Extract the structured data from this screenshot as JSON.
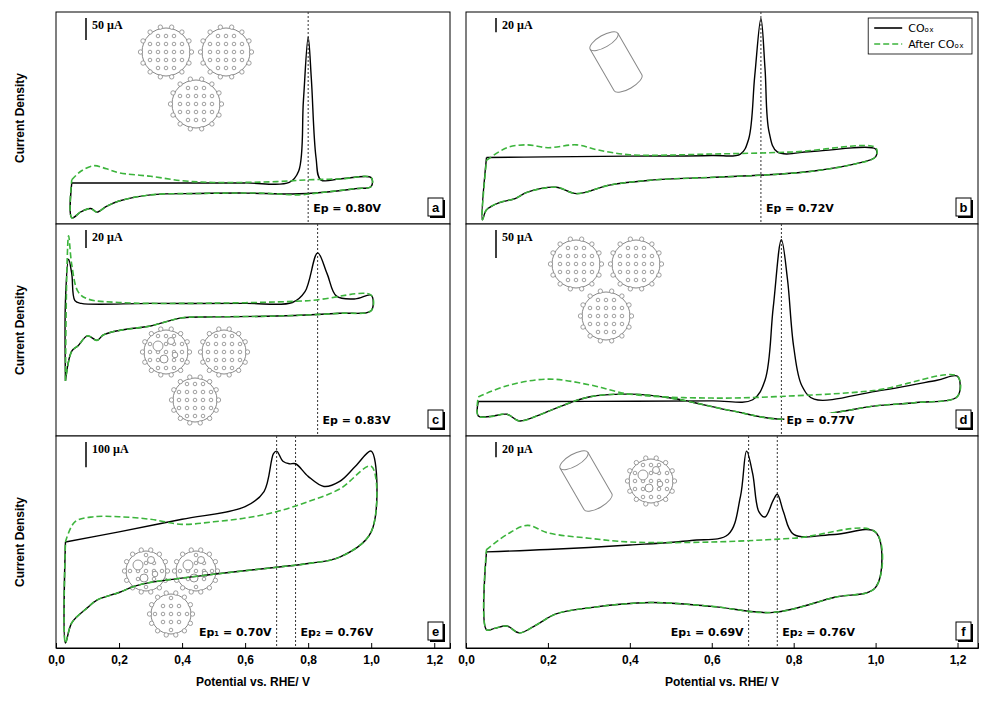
{
  "chart_data": [
    {
      "type": "line",
      "panel": "a",
      "y_label": "Current Density",
      "xlim": [
        0,
        1.25
      ],
      "ylim": [
        -80,
        400
      ],
      "tick_labels": false,
      "scale_bar": {
        "label": "50 µA",
        "value": 50
      },
      "annotations": [
        {
          "text": "Ep = 0.80V",
          "x": 0.8
        }
      ],
      "series": [
        {
          "color": "#000000",
          "line_style": "solid",
          "x": [
            0.05,
            0.2,
            0.4,
            0.6,
            0.74,
            0.77,
            0.785,
            0.8,
            0.81,
            0.825,
            0.84,
            0.9,
            1.0,
            1.0,
            0.95,
            0.85,
            0.75,
            0.6,
            0.45,
            0.3,
            0.2,
            0.16,
            0.13,
            0.11,
            0.08,
            0.05,
            0.05
          ],
          "values": [
            13,
            13,
            13,
            13,
            14,
            40,
            200,
            343,
            250,
            70,
            20,
            22,
            25,
            5,
            0,
            -8,
            -12,
            -10,
            -11,
            -14,
            -28,
            -40,
            -53,
            -45,
            -52,
            -66,
            13
          ]
        },
        {
          "color": "#3cb43c",
          "line_style": "dashed",
          "x": [
            0.05,
            0.08,
            0.12,
            0.16,
            0.2,
            0.3,
            0.4,
            0.5,
            0.7,
            0.8,
            0.9,
            1.0,
            1.0,
            0.95,
            0.85,
            0.77,
            0.65,
            0.45,
            0.3,
            0.2,
            0.16,
            0.13,
            0.11,
            0.08,
            0.05,
            0.05
          ],
          "values": [
            20,
            40,
            52,
            45,
            36,
            28,
            18,
            14,
            16,
            20,
            22,
            25,
            5,
            0,
            -8,
            -14,
            -10,
            -11,
            -14,
            -28,
            -40,
            -53,
            -45,
            -52,
            -66,
            20
          ]
        }
      ]
    },
    {
      "type": "line",
      "panel": "b",
      "xlim": [
        0,
        1.25
      ],
      "ylim": [
        -100,
        200
      ],
      "tick_labels": false,
      "legend": "upper right",
      "scale_bar": {
        "label": "20 µA",
        "value": 20
      },
      "annotations": [
        {
          "text": "Ep = 0.72V",
          "x": 0.72
        }
      ],
      "series": [
        {
          "name": "COₒₓ",
          "color": "#000000",
          "line_style": "solid",
          "x": [
            0.05,
            0.2,
            0.4,
            0.6,
            0.67,
            0.69,
            0.705,
            0.72,
            0.73,
            0.74,
            0.76,
            0.85,
            1.0,
            1.0,
            0.95,
            0.85,
            0.75,
            0.6,
            0.45,
            0.35,
            0.27,
            0.22,
            0.15,
            0.12,
            0.08,
            0.05,
            0.04,
            0.05
          ],
          "values": [
            -6,
            -5,
            -4,
            -3,
            -1,
            20,
            110,
            191,
            120,
            30,
            2,
            3,
            6,
            -5,
            -15,
            -25,
            -30,
            -34,
            -38,
            -45,
            -57,
            -48,
            -55,
            -64,
            -70,
            -80,
            -94,
            -6
          ]
        },
        {
          "name": "After COₒₓ",
          "color": "#3cb43c",
          "line_style": "dashed",
          "x": [
            0.05,
            0.1,
            0.15,
            0.2,
            0.27,
            0.32,
            0.4,
            0.6,
            0.8,
            1.0,
            1.0,
            0.95,
            0.85,
            0.75,
            0.6,
            0.45,
            0.35,
            0.27,
            0.22,
            0.15,
            0.12,
            0.08,
            0.05,
            0.04,
            0.05
          ],
          "values": [
            -10,
            8,
            12,
            8,
            12,
            5,
            -2,
            -1,
            2,
            8,
            -5,
            -15,
            -25,
            -30,
            -34,
            -38,
            -45,
            -57,
            -48,
            -55,
            -64,
            -70,
            -80,
            -94,
            -10
          ]
        }
      ]
    },
    {
      "type": "line",
      "panel": "c",
      "y_label": "Current Density",
      "xlim": [
        0,
        1.25
      ],
      "ylim": [
        -90,
        145
      ],
      "tick_labels": false,
      "scale_bar": {
        "label": "20 µA",
        "value": 20
      },
      "annotations": [
        {
          "text": "Ep = 0.83V",
          "x": 0.83
        }
      ],
      "series": [
        {
          "color": "#000000",
          "line_style": "solid",
          "x": [
            0.03,
            0.03,
            0.04,
            0.05,
            0.06,
            0.08,
            0.3,
            0.6,
            0.75,
            0.79,
            0.83,
            0.86,
            0.89,
            0.95,
            1.0,
            1.0,
            0.9,
            0.7,
            0.5,
            0.4,
            0.3,
            0.2,
            0.15,
            0.13,
            0.1,
            0.07,
            0.05,
            0.03
          ],
          "values": [
            -29,
            60,
            106,
            90,
            60,
            57,
            57,
            57,
            58,
            70,
            113,
            90,
            65,
            62,
            66,
            49,
            46,
            43,
            42,
            41,
            32,
            27,
            22,
            16,
            21,
            10,
            4,
            -29
          ]
        },
        {
          "color": "#3cb43c",
          "line_style": "dashed",
          "x": [
            0.03,
            0.035,
            0.04,
            0.05,
            0.07,
            0.1,
            0.2,
            0.4,
            0.8,
            1.0,
            1.0,
            0.9,
            0.7,
            0.5,
            0.4,
            0.3,
            0.2,
            0.15,
            0.13,
            0.1,
            0.07,
            0.05,
            0.03
          ],
          "values": [
            -29,
            100,
            132,
            100,
            70,
            62,
            58,
            57,
            60,
            66,
            49,
            46,
            43,
            42,
            41,
            32,
            27,
            22,
            16,
            21,
            10,
            4,
            -29
          ]
        }
      ]
    },
    {
      "type": "line",
      "panel": "d",
      "xlim": [
        0,
        1.25
      ],
      "ylim": [
        -80,
        300
      ],
      "tick_labels": false,
      "scale_bar": {
        "label": "50 µA",
        "value": 50
      },
      "annotations": [
        {
          "text": "Ep = 0.77V",
          "x": 0.77
        }
      ],
      "series": [
        {
          "color": "#000000",
          "line_style": "solid",
          "x": [
            0.03,
            0.3,
            0.6,
            0.7,
            0.73,
            0.75,
            0.77,
            0.785,
            0.8,
            0.82,
            0.85,
            1.0,
            1.15,
            1.2,
            1.2,
            1.1,
            1.0,
            0.9,
            0.77,
            0.65,
            0.5,
            0.4,
            0.3,
            0.22,
            0.18,
            0.13,
            0.1,
            0.06,
            0.03,
            0.03
          ],
          "values": [
            -18,
            -18,
            -17,
            -15,
            20,
            150,
            272,
            200,
            80,
            10,
            -14,
            0,
            20,
            27,
            -9,
            -20,
            -26,
            -38,
            -50,
            -35,
            -12,
            -5,
            -10,
            -30,
            -42,
            -53,
            -41,
            -45,
            -44,
            -18
          ]
        },
        {
          "color": "#3cb43c",
          "line_style": "dashed",
          "x": [
            0.03,
            0.1,
            0.2,
            0.3,
            0.4,
            0.6,
            0.8,
            1.0,
            1.2,
            1.2,
            1.1,
            1.0,
            0.9,
            0.77,
            0.65,
            0.5,
            0.4,
            0.3,
            0.22,
            0.18,
            0.13,
            0.1,
            0.06,
            0.03,
            0.03
          ],
          "values": [
            -10,
            10,
            22,
            12,
            -5,
            -12,
            -8,
            2,
            27,
            -9,
            -20,
            -26,
            -38,
            -50,
            -35,
            -12,
            -5,
            -10,
            -30,
            -42,
            -53,
            -41,
            -45,
            -44,
            -10
          ]
        }
      ]
    },
    {
      "type": "line",
      "panel": "e",
      "y_label": "Current Density",
      "x_label": "Potential vs. RHE/ V",
      "xlim": [
        0,
        1.25
      ],
      "ylim": [
        -300,
        540
      ],
      "tick_labels": "x",
      "xticks": [
        {
          "value": 0,
          "label": "0,0"
        },
        {
          "value": 0.2,
          "label": "0,2"
        },
        {
          "value": 0.4,
          "label": "0,4"
        },
        {
          "value": 0.6,
          "label": "0,6"
        },
        {
          "value": 0.8,
          "label": "0,8"
        },
        {
          "value": 1.0,
          "label": "1,0"
        },
        {
          "value": 1.2,
          "label": "1,2"
        }
      ],
      "scale_bar": {
        "label": "100 µA",
        "value": 100
      },
      "annotations": [
        {
          "text": "Ep₁ = 0.70V",
          "x": 0.7
        },
        {
          "text": "Ep₂ = 0.76V",
          "x": 0.76
        }
      ],
      "series": [
        {
          "color": "#000000",
          "line_style": "solid",
          "x": [
            0.03,
            0.2,
            0.4,
            0.6,
            0.66,
            0.69,
            0.7,
            0.72,
            0.74,
            0.76,
            0.8,
            0.85,
            0.9,
            0.95,
            1.0,
            1.0,
            0.9,
            0.8,
            0.7,
            0.5,
            0.3,
            0.25,
            0.2,
            0.13,
            0.1,
            0.05,
            0.03,
            0.03
          ],
          "values": [
            120,
            160,
            210,
            260,
            320,
            470,
            480,
            440,
            430,
            430,
            380,
            340,
            360,
            420,
            480,
            160,
            60,
            35,
            20,
            -8,
            -40,
            -55,
            -80,
            -110,
            -140,
            -200,
            -280,
            120
          ]
        },
        {
          "color": "#3cb43c",
          "line_style": "dashed",
          "x": [
            0.03,
            0.06,
            0.12,
            0.2,
            0.3,
            0.4,
            0.5,
            0.6,
            0.7,
            0.8,
            0.9,
            1.0,
            1.0,
            0.9,
            0.8,
            0.7,
            0.5,
            0.3,
            0.25,
            0.2,
            0.13,
            0.1,
            0.05,
            0.03,
            0.03
          ],
          "values": [
            120,
            200,
            220,
            220,
            210,
            190,
            200,
            215,
            240,
            280,
            330,
            420,
            160,
            60,
            35,
            20,
            -8,
            -40,
            -55,
            -80,
            -110,
            -140,
            -200,
            -280,
            120
          ]
        }
      ]
    },
    {
      "type": "line",
      "panel": "f",
      "x_label": "Potential vs. RHE/ V",
      "xlim": [
        0,
        1.25
      ],
      "ylim": [
        -100,
        180
      ],
      "tick_labels": "x",
      "xticks": [
        {
          "value": 0,
          "label": "0,0"
        },
        {
          "value": 0.2,
          "label": "0,2"
        },
        {
          "value": 0.4,
          "label": "0,4"
        },
        {
          "value": 0.6,
          "label": "0,6"
        },
        {
          "value": 0.8,
          "label": "0,8"
        },
        {
          "value": 1.0,
          "label": "1,0"
        },
        {
          "value": 1.2,
          "label": "1,2"
        }
      ],
      "scale_bar": {
        "label": "20 µA",
        "value": 20
      },
      "annotations": [
        {
          "text": "Ep₁ = 0.69V",
          "x": 0.69
        },
        {
          "text": "Ep₂ = 0.76V",
          "x": 0.76
        }
      ],
      "series": [
        {
          "color": "#000000",
          "line_style": "solid",
          "x": [
            0.05,
            0.2,
            0.4,
            0.55,
            0.64,
            0.67,
            0.685,
            0.7,
            0.715,
            0.73,
            0.75,
            0.76,
            0.775,
            0.8,
            0.9,
            1.0,
            1.0,
            0.9,
            0.75,
            0.6,
            0.45,
            0.3,
            0.22,
            0.17,
            0.13,
            0.1,
            0.07,
            0.05,
            0.05
          ],
          "values": [
            27,
            30,
            36,
            42,
            50,
            100,
            160,
            130,
            80,
            73,
            95,
            103,
            80,
            50,
            50,
            53,
            -20,
            -33,
            -53,
            -45,
            -40,
            -47,
            -55,
            -70,
            -80,
            -71,
            -74,
            -76,
            27
          ]
        },
        {
          "color": "#3cb43c",
          "line_style": "dashed",
          "x": [
            0.05,
            0.1,
            0.15,
            0.2,
            0.3,
            0.4,
            0.6,
            0.8,
            1.0,
            1.0,
            0.9,
            0.75,
            0.6,
            0.45,
            0.3,
            0.22,
            0.17,
            0.13,
            0.1,
            0.07,
            0.05,
            0.05
          ],
          "values": [
            30,
            50,
            62,
            52,
            45,
            40,
            40,
            45,
            53,
            -20,
            -33,
            -53,
            -45,
            -40,
            -47,
            -55,
            -70,
            -80,
            -71,
            -74,
            -76,
            30
          ]
        }
      ]
    }
  ]
}
